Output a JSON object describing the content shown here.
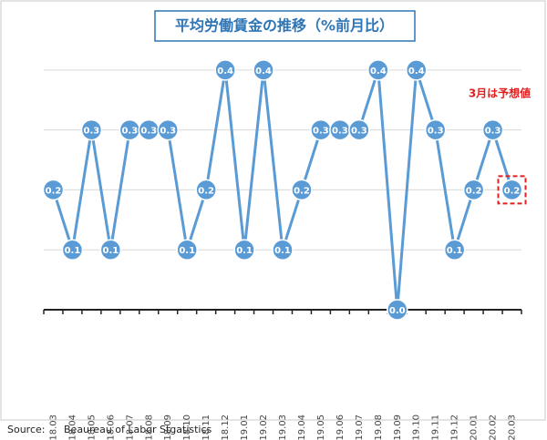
{
  "chart_data": {
    "type": "line",
    "title": "平均労働賃金の推移（%前月比）",
    "annotation": "3月は予想値",
    "source_label": "Source:",
    "source": "Beaureau of Labor Stgatistics",
    "categories": [
      "2018.03",
      "2018.04",
      "2018.05",
      "2018.06",
      "2018.07",
      "2018.08",
      "2018.09",
      "2018.10",
      "2018.11",
      "2018.12",
      "2019.01",
      "2019.02",
      "2019.03",
      "2019.04",
      "2019.05",
      "2019.06",
      "2019.07",
      "2019.08",
      "2019.09",
      "2019.10",
      "2019.11",
      "2019.12",
      "2020.01",
      "2020.02",
      "2020.03"
    ],
    "values": [
      0.2,
      0.1,
      0.3,
      0.1,
      0.3,
      0.3,
      0.3,
      0.1,
      0.2,
      0.4,
      0.1,
      0.4,
      0.1,
      0.2,
      0.3,
      0.3,
      0.3,
      0.4,
      0.0,
      0.4,
      0.3,
      0.1,
      0.2,
      0.3,
      0.2
    ],
    "value_labels": [
      "0.2",
      "0.1",
      "0.3",
      "0.1",
      "0.3",
      "0.3",
      "0.3",
      "0.1",
      "0.2",
      "0.4",
      "0.1",
      "0.4",
      "0.1",
      "0.2",
      "0.3",
      "0.3",
      "0.3",
      "0.4",
      "0.0",
      "0.4",
      "0.3",
      "0.1",
      "0.2",
      "0.3",
      "0.2"
    ],
    "color": "#5b9bd5",
    "ylim": [
      -0.1,
      0.45
    ],
    "yticks": [
      0.1,
      0.2,
      0.3,
      0.4
    ],
    "grid": true
  }
}
